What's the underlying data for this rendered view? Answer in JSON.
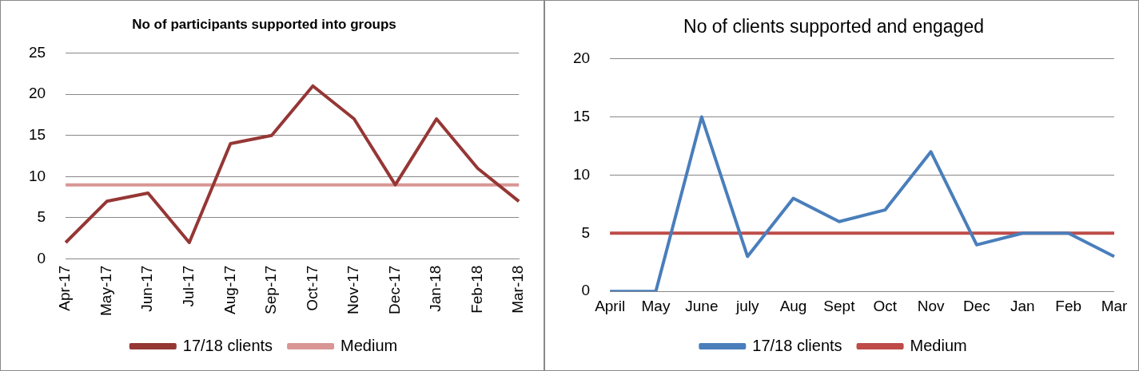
{
  "chart_data": [
    {
      "type": "line",
      "title": "No of participants supported into groups",
      "categories": [
        "Apr-17",
        "May-17",
        "Jun-17",
        "Jul-17",
        "Aug-17",
        "Sep-17",
        "Oct-17",
        "Nov-17",
        "Dec-17",
        "Jan-18",
        "Feb-18",
        "Mar-18"
      ],
      "series": [
        {
          "name": "17/18 clients",
          "color": "#953735",
          "values": [
            2,
            7,
            8,
            2,
            14,
            15,
            21,
            17,
            9,
            17,
            11,
            7
          ]
        },
        {
          "name": "Medium",
          "color": "#d99694",
          "values": [
            9,
            9,
            9,
            9,
            9,
            9,
            9,
            9,
            9,
            9,
            9,
            9
          ]
        }
      ],
      "ylim": [
        0,
        25
      ],
      "yticks": [
        0,
        5,
        10,
        15,
        20,
        25
      ],
      "grid": "y",
      "legend": "bottom",
      "marker": "none"
    },
    {
      "type": "line",
      "title": "No of clients supported and engaged",
      "categories": [
        "April",
        "May",
        "June",
        "july",
        "Aug",
        "Sept",
        "Oct",
        "Nov",
        "Dec",
        "Jan",
        "Feb",
        "Mar"
      ],
      "series": [
        {
          "name": "17/18 clients",
          "color": "#4a7ebb",
          "values": [
            0,
            0,
            15,
            3,
            8,
            6,
            7,
            12,
            4,
            5,
            5,
            3
          ]
        },
        {
          "name": "Medium",
          "color": "#be4b48",
          "values": [
            5,
            5,
            5,
            5,
            5,
            5,
            5,
            5,
            5,
            5,
            5,
            5
          ]
        }
      ],
      "ylim": [
        0,
        20
      ],
      "yticks": [
        0,
        5,
        10,
        15,
        20
      ],
      "grid": "y",
      "legend": "bottom",
      "marker": "none"
    }
  ]
}
